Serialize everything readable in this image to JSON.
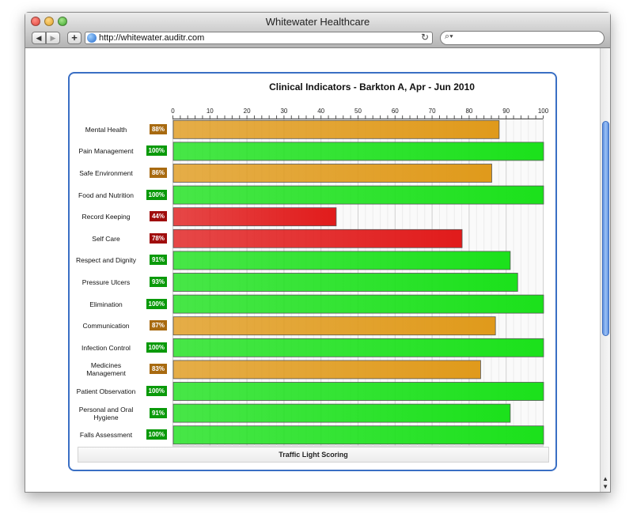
{
  "window": {
    "title": "Whitewater Healthcare",
    "url": "http://whitewater.auditr.com",
    "search_placeholder": ""
  },
  "legend": {
    "label": "Traffic Light Scoring"
  },
  "colors": {
    "green": "#1be11b",
    "amber": "#e09a1b",
    "red": "#e11b1b",
    "badge_green": "#0a9a0a",
    "badge_amber": "#a86a10",
    "badge_red": "#a00d0d"
  },
  "chart_data": {
    "type": "bar",
    "orientation": "horizontal",
    "title": "Clinical Indicators - Barkton A, Apr - Jun 2010",
    "xlim": [
      0,
      100
    ],
    "xticks": [
      0,
      10,
      20,
      30,
      40,
      50,
      60,
      70,
      80,
      90,
      100
    ],
    "grid": true,
    "categories": [
      "Mental Health",
      "Pain Management",
      "Safe Environment",
      "Food and Nutrition",
      "Record Keeping",
      "Self Care",
      "Respect and Dignity",
      "Pressure Ulcers",
      "Elimination",
      "Communication",
      "Infection Control",
      "Medicines Management",
      "Patient Observation",
      "Personal and Oral Hygiene",
      "Falls Assessment"
    ],
    "values": [
      88,
      100,
      86,
      100,
      44,
      78,
      91,
      93,
      100,
      87,
      100,
      83,
      100,
      91,
      100
    ],
    "labels": [
      "88%",
      "100%",
      "86%",
      "100%",
      "44%",
      "78%",
      "91%",
      "93%",
      "100%",
      "87%",
      "100%",
      "83%",
      "100%",
      "91%",
      "100%"
    ],
    "status": [
      "amber",
      "green",
      "amber",
      "green",
      "red",
      "red",
      "green",
      "green",
      "green",
      "amber",
      "green",
      "amber",
      "green",
      "green",
      "green"
    ]
  }
}
